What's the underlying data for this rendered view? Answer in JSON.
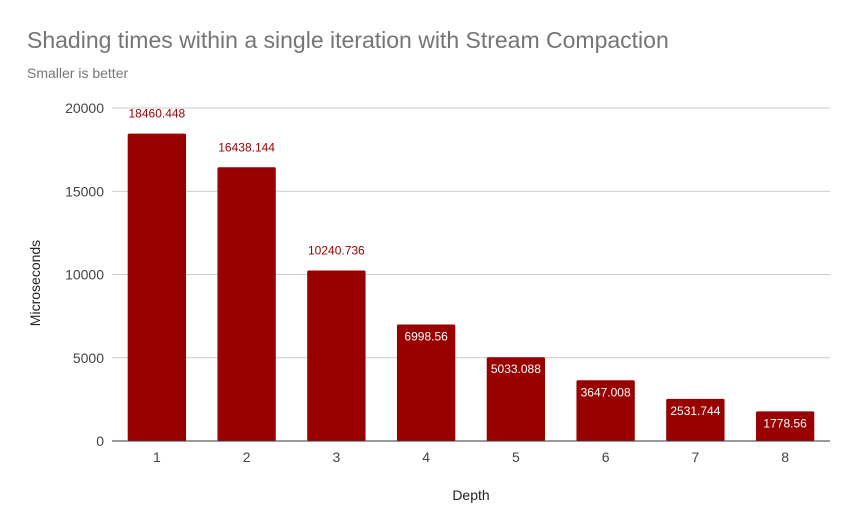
{
  "chart_data": {
    "type": "bar",
    "title": "Shading times within a single iteration with Stream Compaction",
    "subtitle": "Smaller is better",
    "xlabel": "Depth",
    "ylabel": "Microseconds",
    "categories": [
      "1",
      "2",
      "3",
      "4",
      "5",
      "6",
      "7",
      "8"
    ],
    "values": [
      18460.448,
      16438.144,
      10240.736,
      6998.56,
      5033.088,
      3647.008,
      2531.744,
      1778.56
    ],
    "data_labels": [
      "18460.448",
      "16438.144",
      "10240.736",
      "6998.56",
      "5033.088",
      "3647.008",
      "2531.744",
      "1778.56"
    ],
    "ylim": [
      0,
      20000
    ],
    "yticks": [
      0,
      5000,
      10000,
      15000,
      20000
    ],
    "grid": true,
    "legend": "none",
    "bar_color": "#990000",
    "label_color_outside": "#990000",
    "label_color_inside": "#ffffff"
  }
}
